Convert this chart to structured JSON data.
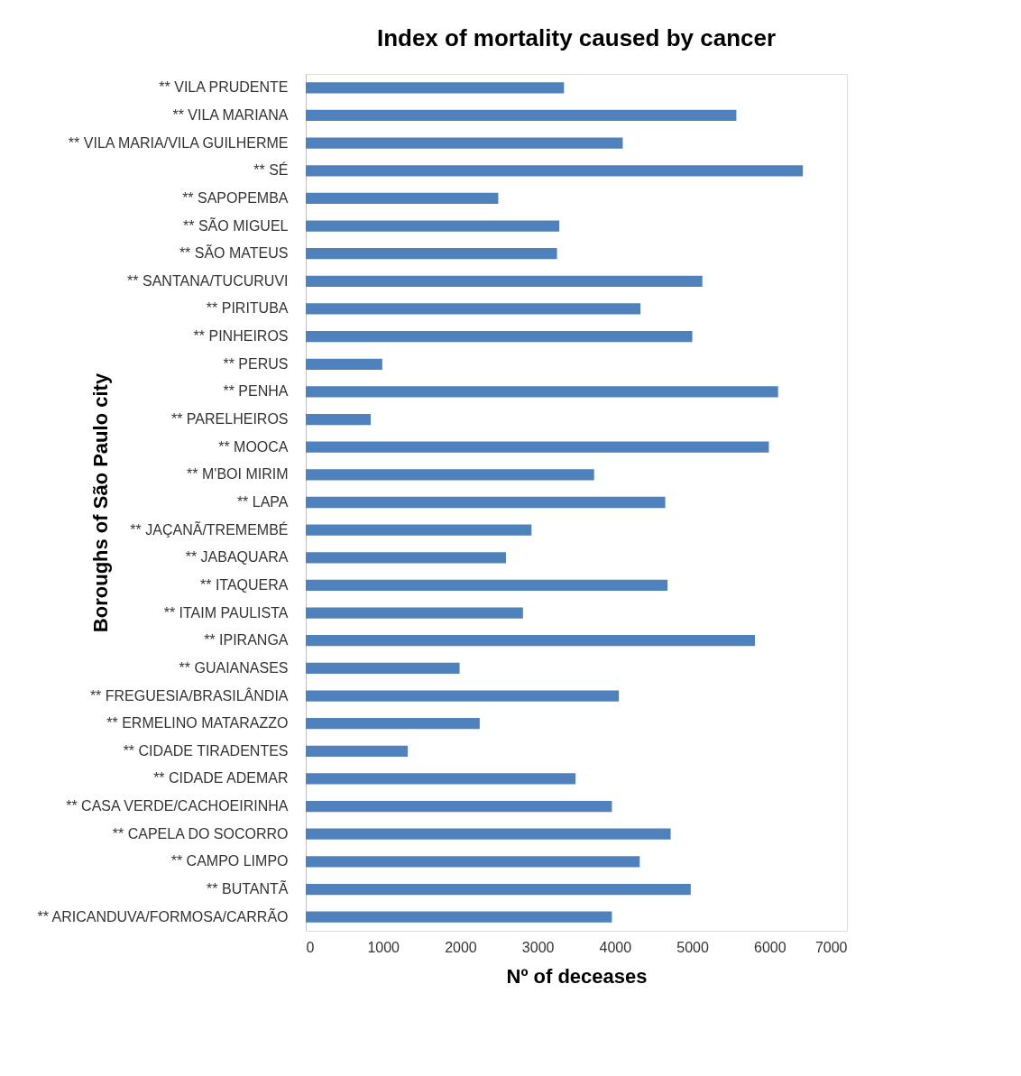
{
  "chart_data": {
    "type": "bar",
    "orientation": "horizontal",
    "title": "Index of mortality caused by cancer",
    "xlabel": "Nº of deceases",
    "ylabel": "Boroughs of São Paulo city",
    "categories": [
      "** VILA PRUDENTE",
      "** VILA MARIANA",
      "** VILA MARIA/VILA GUILHERME",
      "** SÉ",
      "** SAPOPEMBA",
      "** SÃO MIGUEL",
      "** SÃO MATEUS",
      "** SANTANA/TUCURUVI",
      "** PIRITUBA",
      "** PINHEIROS",
      "** PERUS",
      "** PENHA",
      "** PARELHEIROS",
      "** MOOCA",
      "** M'BOI MIRIM",
      "** LAPA",
      "** JAÇANÃ/TREMEMBÉ",
      "** JABAQUARA",
      "** ITAQUERA",
      "** ITAIM PAULISTA",
      "** IPIRANGA",
      "** GUAIANASES",
      "** FREGUESIA/BRASILÂNDIA",
      "** ERMELINO MATARAZZO",
      "** CIDADE TIRADENTES",
      "** CIDADE ADEMAR",
      "** CASA VERDE/CACHOEIRINHA",
      "** CAPELA DO SOCORRO",
      "** CAMPO LIMPO",
      "** BUTANTÃ",
      "** ARICANDUVA/FORMOSA/CARRÃO"
    ],
    "values": [
      3340,
      5570,
      4100,
      6430,
      2490,
      3280,
      3250,
      5130,
      4330,
      5000,
      990,
      6110,
      840,
      5990,
      3730,
      4650,
      2920,
      2590,
      4680,
      2810,
      5810,
      1990,
      4050,
      2250,
      1320,
      3490,
      3960,
      4720,
      4320,
      4980,
      3960
    ],
    "color": "#4f81bd",
    "xlim": [
      0,
      7000
    ],
    "xticks": [
      0,
      1000,
      2000,
      3000,
      4000,
      5000,
      6000,
      7000
    ],
    "grid": false
  }
}
